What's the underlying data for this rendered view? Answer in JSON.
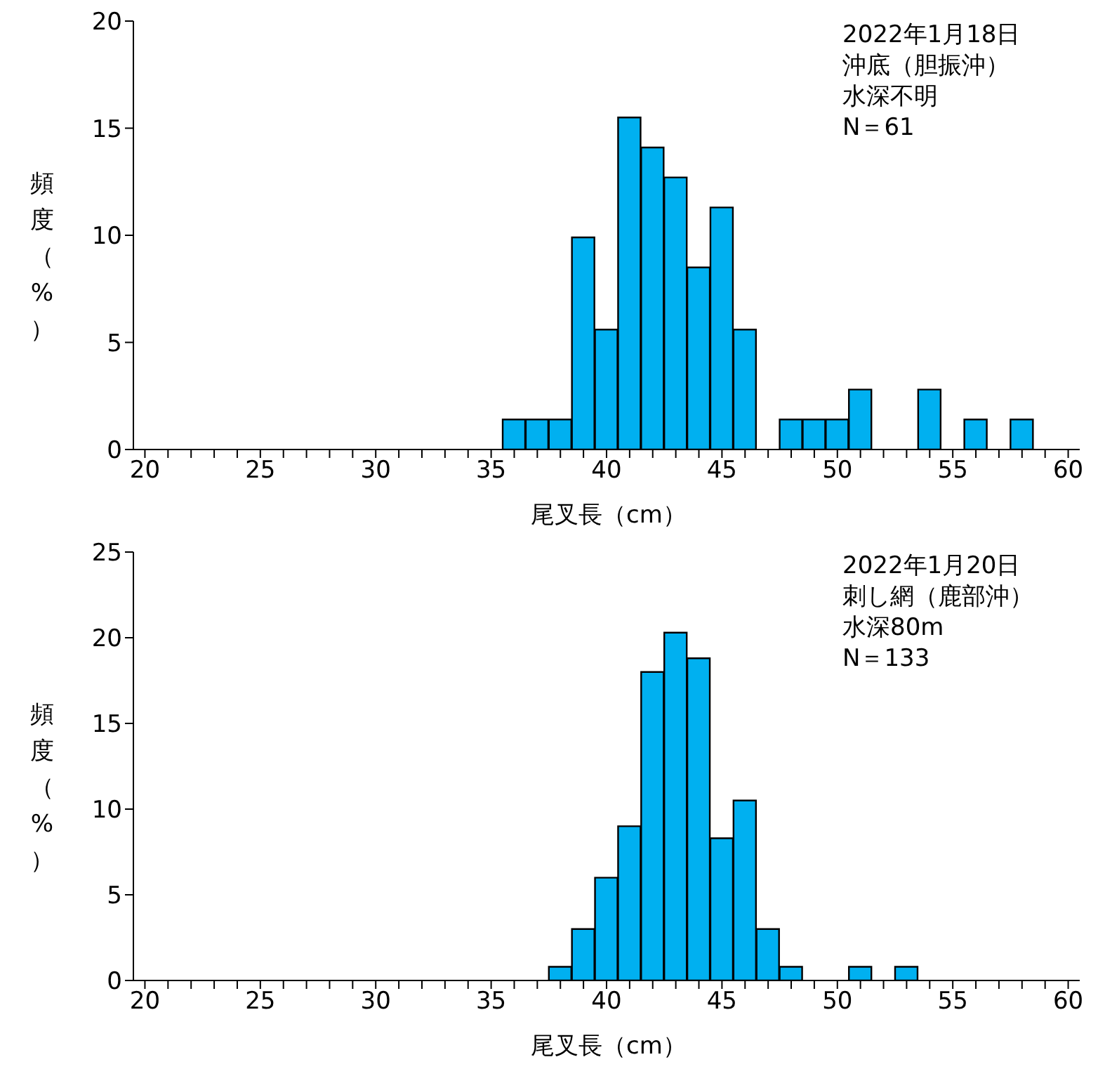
{
  "chart_data": [
    {
      "type": "bar",
      "categories": [
        "20",
        null,
        null,
        null,
        null,
        "25",
        null,
        null,
        null,
        null,
        "30",
        null,
        null,
        null,
        null,
        "35",
        null,
        null,
        null,
        null,
        "40",
        null,
        null,
        null,
        null,
        "45",
        null,
        null,
        null,
        null,
        "50",
        null,
        null,
        null,
        null,
        "55",
        null,
        null,
        null,
        null,
        "60"
      ],
      "values": [
        0,
        0,
        0,
        0,
        0,
        0,
        0,
        0,
        0,
        0,
        0,
        0,
        0,
        0,
        0,
        0,
        1.4,
        1.4,
        1.4,
        9.9,
        5.6,
        15.5,
        14.1,
        12.7,
        8.5,
        11.3,
        5.6,
        0,
        1.4,
        1.4,
        1.4,
        2.8,
        0,
        0,
        2.8,
        0,
        1.4,
        0,
        1.4,
        0,
        0
      ],
      "color": "#00b0f0",
      "xlabel": "尾叉長（cm）",
      "ylabel": "頻度（%）",
      "ylim": [
        0,
        20
      ],
      "yticks": [
        0,
        5,
        10,
        15,
        20
      ],
      "grid": false,
      "legend": false,
      "annotations": [
        "2022年1月18日",
        "沖底（胆振沖）",
        "水深不明",
        "N＝61"
      ]
    },
    {
      "type": "bar",
      "categories": [
        "20",
        null,
        null,
        null,
        null,
        "25",
        null,
        null,
        null,
        null,
        "30",
        null,
        null,
        null,
        null,
        "35",
        null,
        null,
        null,
        null,
        "40",
        null,
        null,
        null,
        null,
        "45",
        null,
        null,
        null,
        null,
        "50",
        null,
        null,
        null,
        null,
        "55",
        null,
        null,
        null,
        null,
        "60"
      ],
      "values": [
        0,
        0,
        0,
        0,
        0,
        0,
        0,
        0,
        0,
        0,
        0,
        0,
        0,
        0,
        0,
        0,
        0,
        0,
        0.8,
        3.0,
        6.0,
        9.0,
        18.0,
        20.3,
        18.8,
        8.3,
        10.5,
        3.0,
        0.8,
        0,
        0,
        0.8,
        0,
        0.8,
        0,
        0,
        0,
        0,
        0,
        0,
        0
      ],
      "color": "#00b0f0",
      "xlabel": "尾叉長（cm）",
      "ylabel": "頻度（%）",
      "ylim": [
        0,
        25
      ],
      "yticks": [
        0,
        5,
        10,
        15,
        20,
        25
      ],
      "grid": false,
      "legend": false,
      "annotations": [
        "2022年1月20日",
        "刺し網（鹿部沖）",
        "水深80m",
        "N＝133"
      ]
    }
  ]
}
